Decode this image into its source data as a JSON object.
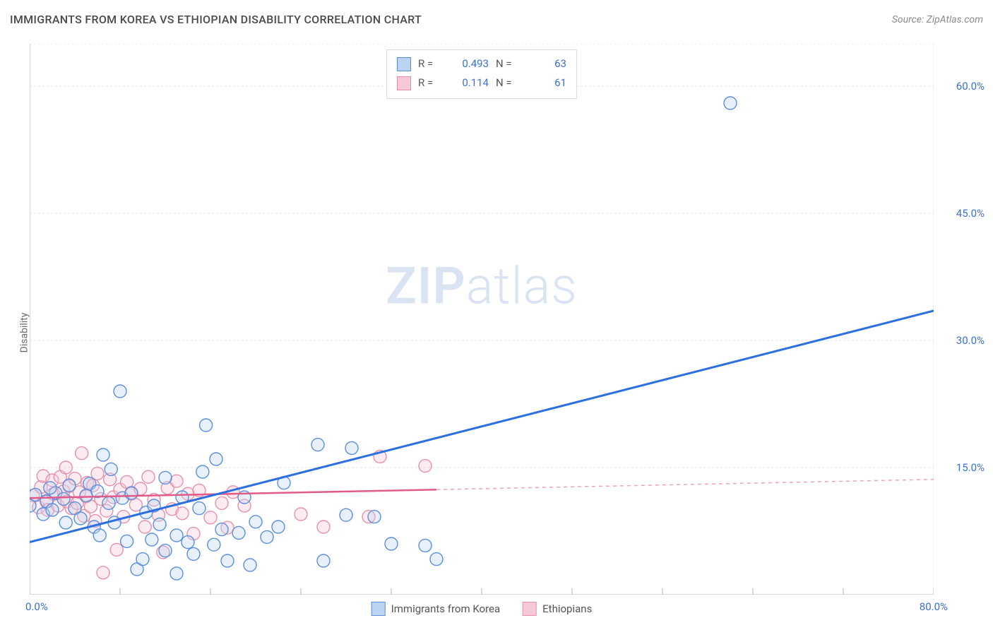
{
  "header": {
    "title": "IMMIGRANTS FROM KOREA VS ETHIOPIAN DISABILITY CORRELATION CHART",
    "source_label": "Source:",
    "source_name": "ZipAtlas.com"
  },
  "ylabel": "Disability",
  "watermark": {
    "zip": "ZIP",
    "atlas": "atlas",
    "color": "#d9e3f2"
  },
  "chart": {
    "type": "scatter",
    "background_color": "#ffffff",
    "grid_color": "#e2e2e2",
    "axis_color": "#bfbfbf",
    "tick_color": "#bfbfbf",
    "label_color": "#3b6fd6",
    "xlim": [
      0,
      80
    ],
    "ylim": [
      0,
      65
    ],
    "yticks": [
      15,
      30,
      45,
      60
    ],
    "ytick_labels": [
      "15.0%",
      "30.0%",
      "45.0%",
      "60.0%"
    ],
    "xtick_positions": [
      0,
      8,
      16,
      24,
      32,
      40,
      48,
      56,
      64,
      72,
      80
    ],
    "x_end_labels": {
      "min": "0.0%",
      "max": "80.0%"
    },
    "marker_radius": 9,
    "marker_stroke_width": 1.4,
    "marker_fill_opacity": 0.35,
    "series": [
      {
        "name": "Immigrants from Korea",
        "color": "#6fa0e8",
        "fill": "#bcd3f2",
        "stroke": "#5a8fe0",
        "stats": {
          "R": "0.493",
          "N": "63"
        },
        "trend": {
          "x1": 0,
          "y1": 6.2,
          "x2": 80,
          "y2": 33.5,
          "stroke": "#2b6fe0",
          "width": 3,
          "dash": null
        },
        "points": [
          [
            0,
            10.5
          ],
          [
            0.5,
            11.8
          ],
          [
            1.5,
            11
          ],
          [
            1.2,
            9.5
          ],
          [
            2,
            10
          ],
          [
            2.3,
            12
          ],
          [
            1.8,
            12.6
          ],
          [
            3,
            11.3
          ],
          [
            3.2,
            8.5
          ],
          [
            3.5,
            12.9
          ],
          [
            4,
            10.2
          ],
          [
            4.5,
            9
          ],
          [
            5,
            11.7
          ],
          [
            5.3,
            13.1
          ],
          [
            5.7,
            8
          ],
          [
            6,
            12.2
          ],
          [
            6.2,
            7
          ],
          [
            6.5,
            16.5
          ],
          [
            7,
            10.8
          ],
          [
            7.2,
            14.8
          ],
          [
            7.5,
            8.5
          ],
          [
            8,
            24
          ],
          [
            8.2,
            11.4
          ],
          [
            8.6,
            6.3
          ],
          [
            9,
            12
          ],
          [
            9.5,
            3
          ],
          [
            10,
            4.2
          ],
          [
            10.3,
            9.7
          ],
          [
            10.8,
            6.5
          ],
          [
            11,
            10.5
          ],
          [
            11.5,
            8.3
          ],
          [
            12,
            5.2
          ],
          [
            12,
            13.8
          ],
          [
            13,
            7
          ],
          [
            13,
            2.5
          ],
          [
            13.5,
            11.5
          ],
          [
            14,
            6.2
          ],
          [
            14.5,
            4.8
          ],
          [
            15,
            10.2
          ],
          [
            15.3,
            14.5
          ],
          [
            15.6,
            20
          ],
          [
            16.3,
            5.9
          ],
          [
            16.5,
            16
          ],
          [
            17,
            7.7
          ],
          [
            17.5,
            4
          ],
          [
            18.5,
            7.3
          ],
          [
            19,
            11.5
          ],
          [
            19.5,
            3.5
          ],
          [
            20,
            8.6
          ],
          [
            21,
            6.8
          ],
          [
            22,
            8
          ],
          [
            22.5,
            13.2
          ],
          [
            25.5,
            17.7
          ],
          [
            26,
            4
          ],
          [
            28,
            9.4
          ],
          [
            28.5,
            17.3
          ],
          [
            30.5,
            9.2
          ],
          [
            32,
            6
          ],
          [
            35,
            5.8
          ],
          [
            36,
            4.2
          ],
          [
            62,
            58
          ]
        ]
      },
      {
        "name": "Ethiopians",
        "color": "#f0a8bb",
        "fill": "#f6c9d6",
        "stroke": "#e890a8",
        "stats": {
          "R": "0.114",
          "N": "61"
        },
        "trend_solid": {
          "x1": 0,
          "y1": 11.4,
          "x2": 36,
          "y2": 12.4,
          "stroke": "#e05a8a",
          "width": 2.5
        },
        "trend_dash": {
          "x1": 36,
          "y1": 12.4,
          "x2": 80,
          "y2": 13.6,
          "stroke": "#e8a5b8",
          "width": 1.5,
          "dash": "5,5"
        },
        "points": [
          [
            0.3,
            11.7
          ],
          [
            0.8,
            10.3
          ],
          [
            1,
            12.7
          ],
          [
            1.2,
            14
          ],
          [
            1.5,
            11.1
          ],
          [
            1.6,
            10
          ],
          [
            2,
            13.5
          ],
          [
            2.1,
            11.9
          ],
          [
            2.5,
            10.5
          ],
          [
            2.7,
            13.9
          ],
          [
            3,
            12.2
          ],
          [
            3.2,
            15
          ],
          [
            3.3,
            11
          ],
          [
            3.5,
            12.8
          ],
          [
            3.7,
            10.2
          ],
          [
            4,
            13.7
          ],
          [
            4.2,
            10.8
          ],
          [
            4.4,
            12.1
          ],
          [
            4.6,
            16.7
          ],
          [
            4.8,
            9.3
          ],
          [
            5,
            11.6
          ],
          [
            5.1,
            13.2
          ],
          [
            5.4,
            10.4
          ],
          [
            5.6,
            12.9
          ],
          [
            5.8,
            8.7
          ],
          [
            6,
            14.3
          ],
          [
            6.3,
            11.3
          ],
          [
            6.5,
            2.6
          ],
          [
            6.8,
            9.9
          ],
          [
            7.1,
            13.6
          ],
          [
            7.4,
            11.5
          ],
          [
            7.7,
            5.3
          ],
          [
            8,
            12.4
          ],
          [
            8.3,
            9.2
          ],
          [
            8.6,
            13.3
          ],
          [
            9,
            11.9
          ],
          [
            9.4,
            10.6
          ],
          [
            9.8,
            12.5
          ],
          [
            10.2,
            8
          ],
          [
            10.5,
            13.9
          ],
          [
            11,
            11.2
          ],
          [
            11.4,
            9.4
          ],
          [
            11.8,
            5
          ],
          [
            12.2,
            12.6
          ],
          [
            12.6,
            10.1
          ],
          [
            13,
            13.4
          ],
          [
            13.5,
            9.6
          ],
          [
            14,
            11.9
          ],
          [
            14.5,
            7.2
          ],
          [
            15,
            12.3
          ],
          [
            16,
            9.1
          ],
          [
            17,
            10.8
          ],
          [
            17.5,
            7.9
          ],
          [
            18,
            12.1
          ],
          [
            19,
            10.5
          ],
          [
            24,
            9.5
          ],
          [
            26,
            8
          ],
          [
            30,
            9.2
          ],
          [
            31,
            16.3
          ],
          [
            35,
            15.2
          ]
        ]
      }
    ]
  },
  "legend_top": {
    "R_label": "R =",
    "N_label": "N ="
  },
  "legend_bottom": {
    "items": [
      "Immigrants from Korea",
      "Ethiopians"
    ]
  }
}
